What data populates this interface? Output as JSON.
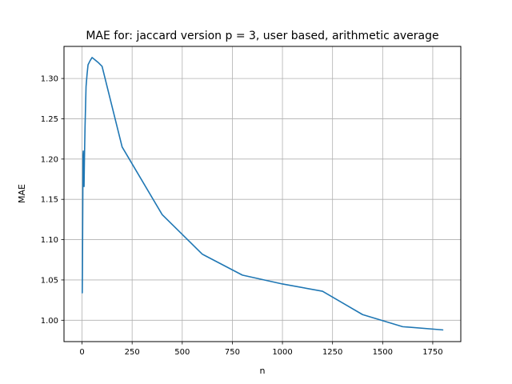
{
  "chart_data": {
    "type": "line",
    "title": "MAE for: jaccard version p = 3, user based, arithmetic average",
    "xlabel": "n",
    "ylabel": "MAE",
    "xlim": [
      -90,
      1890
    ],
    "ylim": [
      0.9735,
      1.3398
    ],
    "grid": true,
    "x_ticks": [
      0,
      250,
      500,
      750,
      1000,
      1250,
      1500,
      1750
    ],
    "y_ticks": [
      1.0,
      1.05,
      1.1,
      1.15,
      1.2,
      1.25,
      1.3
    ],
    "x_tick_labels": [
      "0",
      "250",
      "500",
      "750",
      "1000",
      "1250",
      "1500",
      "1750"
    ],
    "y_tick_labels": [
      "1.00",
      "1.05",
      "1.10",
      "1.15",
      "1.20",
      "1.25",
      "1.30"
    ],
    "colors": {
      "line": "#1f77b4",
      "grid": "#b0b0b0",
      "axes": "#000000"
    },
    "series": [
      {
        "x": [
          1,
          2,
          3,
          4,
          5,
          6,
          8,
          10,
          12,
          15,
          20,
          25,
          30,
          40,
          50,
          60,
          80,
          100,
          200,
          400,
          600,
          800,
          1000,
          1200,
          1400,
          1600,
          1800
        ],
        "y": [
          1.034,
          1.06,
          1.11,
          1.16,
          1.205,
          1.21,
          1.175,
          1.166,
          1.2,
          1.24,
          1.29,
          1.305,
          1.317,
          1.322,
          1.326,
          1.324,
          1.32,
          1.315,
          1.215,
          1.131,
          1.082,
          1.056,
          1.045,
          1.036,
          1.007,
          0.992,
          0.988
        ]
      }
    ]
  }
}
